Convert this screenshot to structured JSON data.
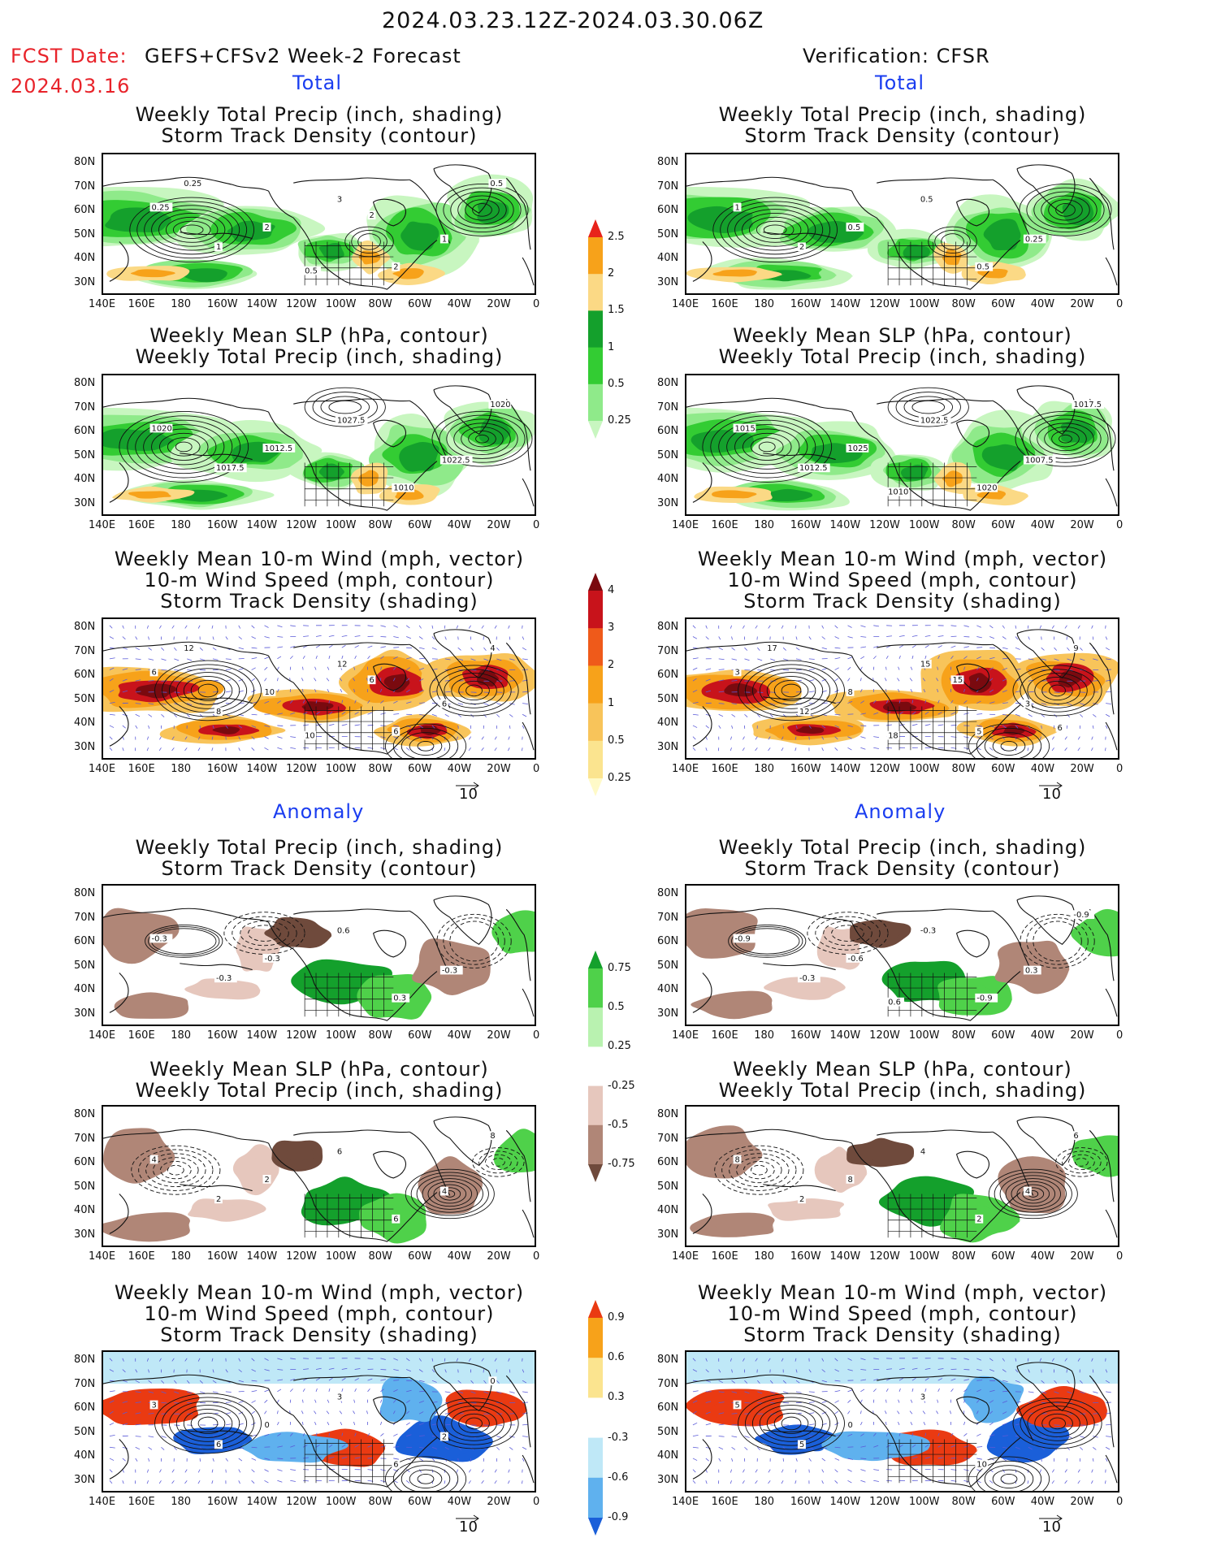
{
  "header": {
    "date_range": "2024.03.23.12Z-2024.03.30.06Z",
    "fcst_date_label": "FCST Date:",
    "fcst_model": "GEFS+CFSv2 Week-2 Forecast",
    "fcst_date": "2024.03.16",
    "verification": "Verification: CFSR"
  },
  "sections": {
    "total": "Total",
    "anomaly": "Anomaly"
  },
  "panel_titles": {
    "precip_storm": [
      "Weekly Total Precip (inch, shading)",
      "Storm Track Density (contour)"
    ],
    "slp_precip": [
      "Weekly Mean SLP (hPa, contour)",
      "Weekly Total Precip (inch, shading)"
    ],
    "wind_storm": [
      "Weekly Mean 10-m Wind (mph, vector)",
      "10-m Wind Speed (mph, contour)",
      "Storm Track Density (shading)"
    ]
  },
  "axes": {
    "lat_labels": [
      "80N",
      "70N",
      "60N",
      "50N",
      "40N",
      "30N"
    ],
    "lon_labels": [
      "140E",
      "160E",
      "180",
      "160W",
      "140W",
      "120W",
      "100W",
      "80W",
      "60W",
      "40W",
      "20W",
      "0"
    ]
  },
  "vector_ref": "10",
  "colorbars": {
    "precip_total": {
      "labels": [
        "2.5",
        "2",
        "1.5",
        "1",
        "0.5",
        "0.25"
      ],
      "colors": [
        "#e8231b",
        "#f7a21a",
        "#fbd985",
        "#14a02c",
        "#33cc33",
        "#8fea8a",
        "#c8f6c0"
      ]
    },
    "storm_total": {
      "labels": [
        "4",
        "3",
        "2",
        "1",
        "0.5",
        "0.25"
      ],
      "colors": [
        "#7a0a0f",
        "#c8131b",
        "#ef5a1a",
        "#f7a21a",
        "#f8c45a",
        "#fbe48f",
        "#fffac8"
      ]
    },
    "precip_anom": {
      "labels": [
        "0.75",
        "0.5",
        "0.25",
        "-0.25",
        "-0.5",
        "-0.75"
      ],
      "colors": [
        "#14a02c",
        "#4fd14a",
        "#b9f2b0",
        "#ffffff",
        "#e6c7bd",
        "#b08677",
        "#6f4a3c"
      ]
    },
    "storm_anom": {
      "labels": [
        "0.9",
        "0.6",
        "0.3",
        "-0.3",
        "-0.6",
        "-0.9"
      ],
      "colors": [
        "#ea3a12",
        "#f7a21a",
        "#fbe48f",
        "#ffffff",
        "#bfe8f7",
        "#5fb1ee",
        "#1a5fd9"
      ]
    }
  },
  "contour_labels": {
    "p1": [
      "0.25",
      "1",
      "2",
      "3",
      "2",
      "1",
      "0.5",
      "0.5",
      "0.25",
      "2"
    ],
    "p2": [
      "1",
      "2",
      "0.5",
      "0.5",
      "0.5",
      "0.25"
    ],
    "p3": [
      "1020",
      "1017.5",
      "1012.5",
      "1027.5",
      "1010",
      "1022.5",
      "1020"
    ],
    "p4": [
      "1015",
      "1012.5",
      "1025",
      "1022.5",
      "1020",
      "1007.5",
      "1017.5",
      "1010"
    ],
    "p5": [
      "6",
      "8",
      "10",
      "12",
      "6",
      "6",
      "4",
      "10",
      "12",
      "6"
    ],
    "p6": [
      "3",
      "12",
      "8",
      "15",
      "5",
      "3",
      "9",
      "18",
      "17",
      "15",
      "6"
    ],
    "p7": [
      "-0.3",
      "-0.3",
      "-0.3",
      "0.6",
      "0.3",
      "-0.3"
    ],
    "p8": [
      "-0.9",
      "-0.3",
      "-0.6",
      "-0.3",
      "-0.9",
      "0.3",
      "-0.9",
      "0.6"
    ],
    "p9": [
      "4",
      "2",
      "2",
      "6",
      "6",
      "4",
      "8"
    ],
    "p10": [
      "8",
      "2",
      "8",
      "4",
      "2",
      "4",
      "6"
    ],
    "p11": [
      "3",
      "6",
      "0",
      "3",
      "6",
      "2",
      "0"
    ],
    "p12": [
      "5",
      "5",
      "0",
      "3",
      "10"
    ]
  }
}
